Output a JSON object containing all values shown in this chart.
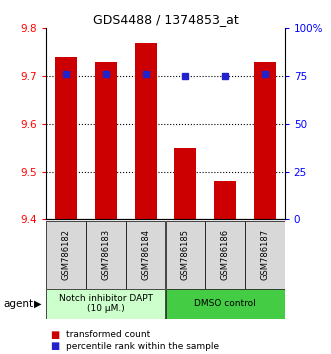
{
  "title": "GDS4488 / 1374853_at",
  "categories": [
    "GSM786182",
    "GSM786183",
    "GSM786184",
    "GSM786185",
    "GSM786186",
    "GSM786187"
  ],
  "bar_values": [
    9.74,
    9.73,
    9.77,
    9.55,
    9.48,
    9.73
  ],
  "bar_bottom": 9.4,
  "percentile_values": [
    76,
    76,
    76,
    75,
    75,
    76
  ],
  "ylim_left": [
    9.4,
    9.8
  ],
  "ylim_right": [
    0,
    100
  ],
  "yticks_left": [
    9.4,
    9.5,
    9.6,
    9.7,
    9.8
  ],
  "yticks_right": [
    0,
    25,
    50,
    75,
    100
  ],
  "ytick_labels_right": [
    "0",
    "25",
    "50",
    "75",
    "100%"
  ],
  "bar_color": "#cc0000",
  "percentile_color": "#2222cc",
  "agent_groups": [
    {
      "label": "Notch inhibitor DAPT\n(10 μM.)",
      "color": "#ccffcc",
      "span": [
        0,
        3
      ]
    },
    {
      "label": "DMSO control",
      "color": "#44cc44",
      "span": [
        3,
        6
      ]
    }
  ],
  "legend_items": [
    {
      "label": "transformed count",
      "color": "#cc0000"
    },
    {
      "label": "percentile rank within the sample",
      "color": "#2222cc"
    }
  ],
  "agent_label": "agent"
}
